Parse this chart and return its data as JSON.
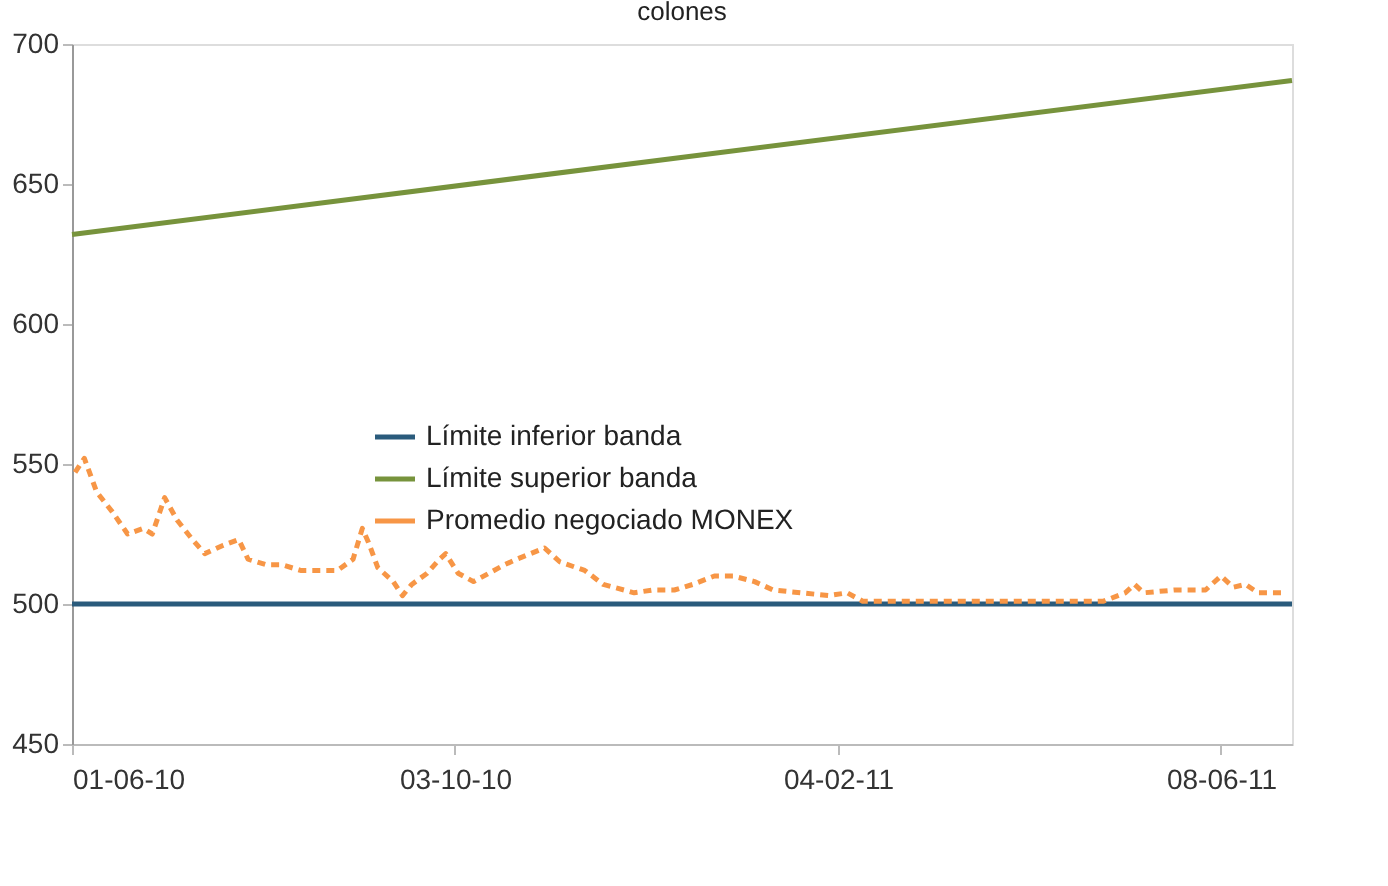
{
  "chart_data": {
    "type": "line",
    "title": "colones",
    "x": [
      "2010-06-01",
      "2011-07-01"
    ],
    "xlim": [
      "2010-06-01",
      "2011-07-01"
    ],
    "xticks": [
      {
        "value": "2010-06-01",
        "label": "01-06-10"
      },
      {
        "value": "2010-10-03",
        "label": "03-10-10"
      },
      {
        "value": "2011-02-04",
        "label": "04-02-11"
      },
      {
        "value": "2011-06-08",
        "label": "08-06-11"
      }
    ],
    "ylim": [
      450,
      700
    ],
    "yticks": [
      450,
      500,
      550,
      600,
      650,
      700
    ],
    "grid": false,
    "legend": "center",
    "marker": "none",
    "series": [
      {
        "name": "Límite inferior banda",
        "color": "#2a5b7c",
        "line_style": "solid",
        "values": [
          500,
          500
        ]
      },
      {
        "name": "Límite superior banda",
        "color": "#77933c",
        "line_style": "solid",
        "values": [
          632,
          687
        ]
      },
      {
        "name": "Promedio negociado MONEX",
        "color": "#f79646",
        "line_style": "dashed",
        "x": [
          "2010-06-02",
          "2010-06-05",
          "2010-06-09",
          "2010-06-14",
          "2010-06-19",
          "2010-06-24",
          "2010-06-27",
          "2010-07-01",
          "2010-07-05",
          "2010-07-10",
          "2010-07-14",
          "2010-07-20",
          "2010-07-25",
          "2010-07-28",
          "2010-08-03",
          "2010-08-08",
          "2010-08-14",
          "2010-08-21",
          "2010-08-26",
          "2010-08-31",
          "2010-09-03",
          "2010-09-05",
          "2010-09-08",
          "2010-09-13",
          "2010-09-16",
          "2010-09-19",
          "2010-09-24",
          "2010-09-28",
          "2010-09-30",
          "2010-10-04",
          "2010-10-09",
          "2010-10-14",
          "2010-10-19",
          "2010-10-23",
          "2010-11-01",
          "2010-11-06",
          "2010-11-14",
          "2010-11-20",
          "2010-11-30",
          "2010-12-06",
          "2010-12-13",
          "2010-12-19",
          "2010-12-26",
          "2011-01-01",
          "2011-01-08",
          "2011-01-14",
          "2011-01-23",
          "2011-02-01",
          "2011-02-07",
          "2011-02-12",
          "2011-02-25",
          "2011-03-10",
          "2011-03-23",
          "2011-04-05",
          "2011-04-18",
          "2011-05-01",
          "2011-05-08",
          "2011-05-11",
          "2011-05-14",
          "2011-05-24",
          "2011-06-03",
          "2011-06-08",
          "2011-06-12",
          "2011-06-16",
          "2011-06-20",
          "2011-06-28"
        ],
        "values": [
          547,
          552,
          540,
          533,
          525,
          527,
          525,
          538,
          530,
          523,
          518,
          521,
          523,
          516,
          514,
          514,
          512,
          512,
          512,
          516,
          527,
          522,
          513,
          508,
          503,
          507,
          511,
          516,
          518,
          511,
          508,
          511,
          514,
          516,
          520,
          515,
          512,
          507,
          504,
          505,
          505,
          507,
          510,
          510,
          508,
          505,
          504,
          503,
          504,
          501,
          501,
          501,
          501,
          501,
          501,
          501,
          504,
          507,
          504,
          505,
          505,
          510,
          506,
          507,
          504,
          504
        ]
      }
    ]
  }
}
